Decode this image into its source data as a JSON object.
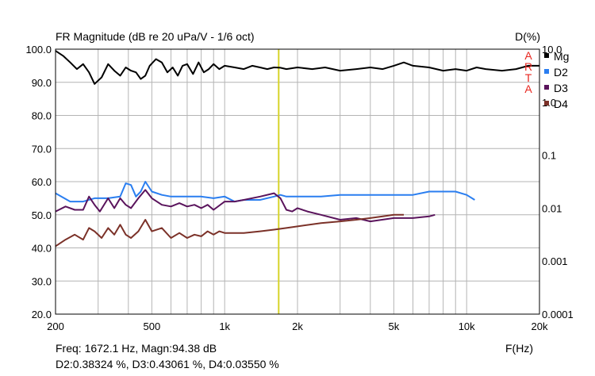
{
  "chart_data": {
    "type": "line",
    "title": "FR Magnitude (dB re 20 uPa/V - 1/6 oct)",
    "right_axis_title": "D(%)",
    "xlabel": "F(Hz)",
    "x_scale": "log",
    "xlim": [
      200,
      20000
    ],
    "ylim": [
      20,
      100
    ],
    "y2_scale": "log",
    "y2lim": [
      0.0001,
      10
    ],
    "grid": true,
    "legend_position": "top-right",
    "watermark": [
      "A",
      "R",
      "T",
      "A"
    ],
    "x_ticks": [
      {
        "value": 200,
        "label": "200"
      },
      {
        "value": 500,
        "label": "500"
      },
      {
        "value": 1000,
        "label": "1k"
      },
      {
        "value": 2000,
        "label": "2k"
      },
      {
        "value": 5000,
        "label": "5k"
      },
      {
        "value": 10000,
        "label": "10k"
      },
      {
        "value": 20000,
        "label": "20k"
      }
    ],
    "y_ticks": [
      {
        "value": 100,
        "label": "100.0"
      },
      {
        "value": 90,
        "label": "90.0"
      },
      {
        "value": 80,
        "label": "80.0"
      },
      {
        "value": 70,
        "label": "70.0"
      },
      {
        "value": 60,
        "label": "60.0"
      },
      {
        "value": 50,
        "label": "50.0"
      },
      {
        "value": 40,
        "label": "40.0"
      },
      {
        "value": 30,
        "label": "30.0"
      },
      {
        "value": 20,
        "label": "20.0"
      }
    ],
    "y2_ticks": [
      {
        "value": 10,
        "label": "10.0"
      },
      {
        "value": 1,
        "label": "1.0"
      },
      {
        "value": 0.1,
        "label": "0.1"
      },
      {
        "value": 0.01,
        "label": "0.01"
      },
      {
        "value": 0.001,
        "label": "0.001"
      },
      {
        "value": 0.0001,
        "label": "0.0001"
      }
    ],
    "cursor": {
      "freq": 1672.1,
      "color": "#d6d42a"
    },
    "series": [
      {
        "name": "Mg",
        "color": "#000000",
        "axis": "left",
        "x": [
          200,
          215,
          230,
          245,
          260,
          275,
          290,
          310,
          330,
          350,
          370,
          390,
          410,
          430,
          450,
          470,
          490,
          520,
          550,
          580,
          610,
          640,
          670,
          700,
          740,
          780,
          820,
          860,
          900,
          950,
          1000,
          1100,
          1200,
          1300,
          1400,
          1500,
          1600,
          1700,
          1800,
          2000,
          2300,
          2600,
          3000,
          3500,
          4000,
          4500,
          5000,
          5500,
          6000,
          7000,
          8000,
          9000,
          10000,
          11000,
          12000,
          14000,
          16000,
          18000,
          20000
        ],
        "y": [
          99.5,
          98.0,
          96.0,
          94.0,
          95.5,
          93.0,
          89.5,
          91.5,
          95.5,
          93.5,
          92.0,
          94.5,
          93.5,
          93.0,
          91.0,
          92.0,
          95.0,
          97.0,
          96.0,
          93.0,
          94.5,
          92.0,
          95.0,
          95.5,
          92.5,
          96.0,
          93.0,
          94.0,
          95.5,
          94.0,
          95.0,
          94.5,
          94.0,
          95.0,
          94.5,
          94.0,
          94.5,
          94.4,
          94.0,
          94.5,
          94.0,
          94.5,
          93.5,
          94.0,
          94.5,
          94.0,
          95.0,
          96.0,
          95.0,
          94.5,
          93.5,
          94.0,
          93.5,
          94.5,
          94.0,
          93.5,
          94.0,
          95.0,
          95.0
        ]
      },
      {
        "name": "D2",
        "color": "#2a7ef0",
        "axis": "left",
        "x": [
          200,
          230,
          260,
          290,
          330,
          370,
          390,
          410,
          430,
          450,
          470,
          500,
          550,
          600,
          700,
          800,
          900,
          1000,
          1100,
          1200,
          1400,
          1600,
          1700,
          1800,
          2000,
          2500,
          3000,
          4000,
          5000,
          6000,
          7000,
          8000,
          9000,
          10000,
          10800
        ],
        "y": [
          56.5,
          54.0,
          54.0,
          55.0,
          55.0,
          55.5,
          59.5,
          59.0,
          55.5,
          57.0,
          60.0,
          57.0,
          56.0,
          55.5,
          55.5,
          55.5,
          55.0,
          55.5,
          54.0,
          54.5,
          54.5,
          55.5,
          56.0,
          55.5,
          55.5,
          55.5,
          56.0,
          56.0,
          56.0,
          56.0,
          57.0,
          57.0,
          57.0,
          56.0,
          54.5
        ]
      },
      {
        "name": "D3",
        "color": "#5a145c",
        "axis": "left",
        "x": [
          200,
          220,
          240,
          260,
          275,
          290,
          305,
          330,
          350,
          370,
          390,
          410,
          440,
          470,
          500,
          550,
          600,
          650,
          700,
          750,
          800,
          850,
          900,
          1000,
          1100,
          1200,
          1400,
          1600,
          1700,
          1800,
          1900,
          2000,
          2200,
          2500,
          3000,
          3500,
          4000,
          5000,
          6000,
          7000,
          7400
        ],
        "y": [
          51.0,
          52.5,
          51.5,
          51.5,
          55.5,
          53.0,
          51.0,
          55.0,
          52.0,
          55.0,
          53.0,
          52.0,
          55.0,
          57.5,
          55.0,
          53.0,
          52.5,
          53.5,
          52.5,
          53.0,
          52.0,
          53.0,
          51.5,
          54.0,
          54.0,
          54.5,
          55.5,
          56.5,
          55.0,
          51.5,
          51.0,
          52.0,
          51.0,
          50.0,
          48.5,
          49.0,
          48.0,
          49.0,
          49.0,
          49.5,
          50.0
        ]
      },
      {
        "name": "D4",
        "color": "#7b3128",
        "axis": "left",
        "x": [
          200,
          220,
          240,
          260,
          275,
          290,
          310,
          330,
          350,
          370,
          390,
          410,
          440,
          470,
          500,
          550,
          600,
          650,
          700,
          750,
          800,
          850,
          900,
          950,
          1000,
          1100,
          1200,
          1400,
          1600,
          1800,
          2000,
          2500,
          3000,
          3500,
          4000,
          4500,
          5000,
          5500
        ],
        "y": [
          40.5,
          42.5,
          44.0,
          42.5,
          46.0,
          45.0,
          43.0,
          46.0,
          44.0,
          47.0,
          44.0,
          43.0,
          45.0,
          48.5,
          45.0,
          46.0,
          43.0,
          44.5,
          43.0,
          44.0,
          43.5,
          45.0,
          44.0,
          45.0,
          44.5,
          44.5,
          44.5,
          45.0,
          45.5,
          46.0,
          46.5,
          47.5,
          48.0,
          48.5,
          49.0,
          49.5,
          50.0,
          50.0
        ]
      }
    ]
  },
  "readout": {
    "line1": "Freq: 1672.1 Hz, Magn:94.38 dB",
    "line2": "D2:0.38324 %, D3:0.43061 %, D4:0.03550 %"
  }
}
